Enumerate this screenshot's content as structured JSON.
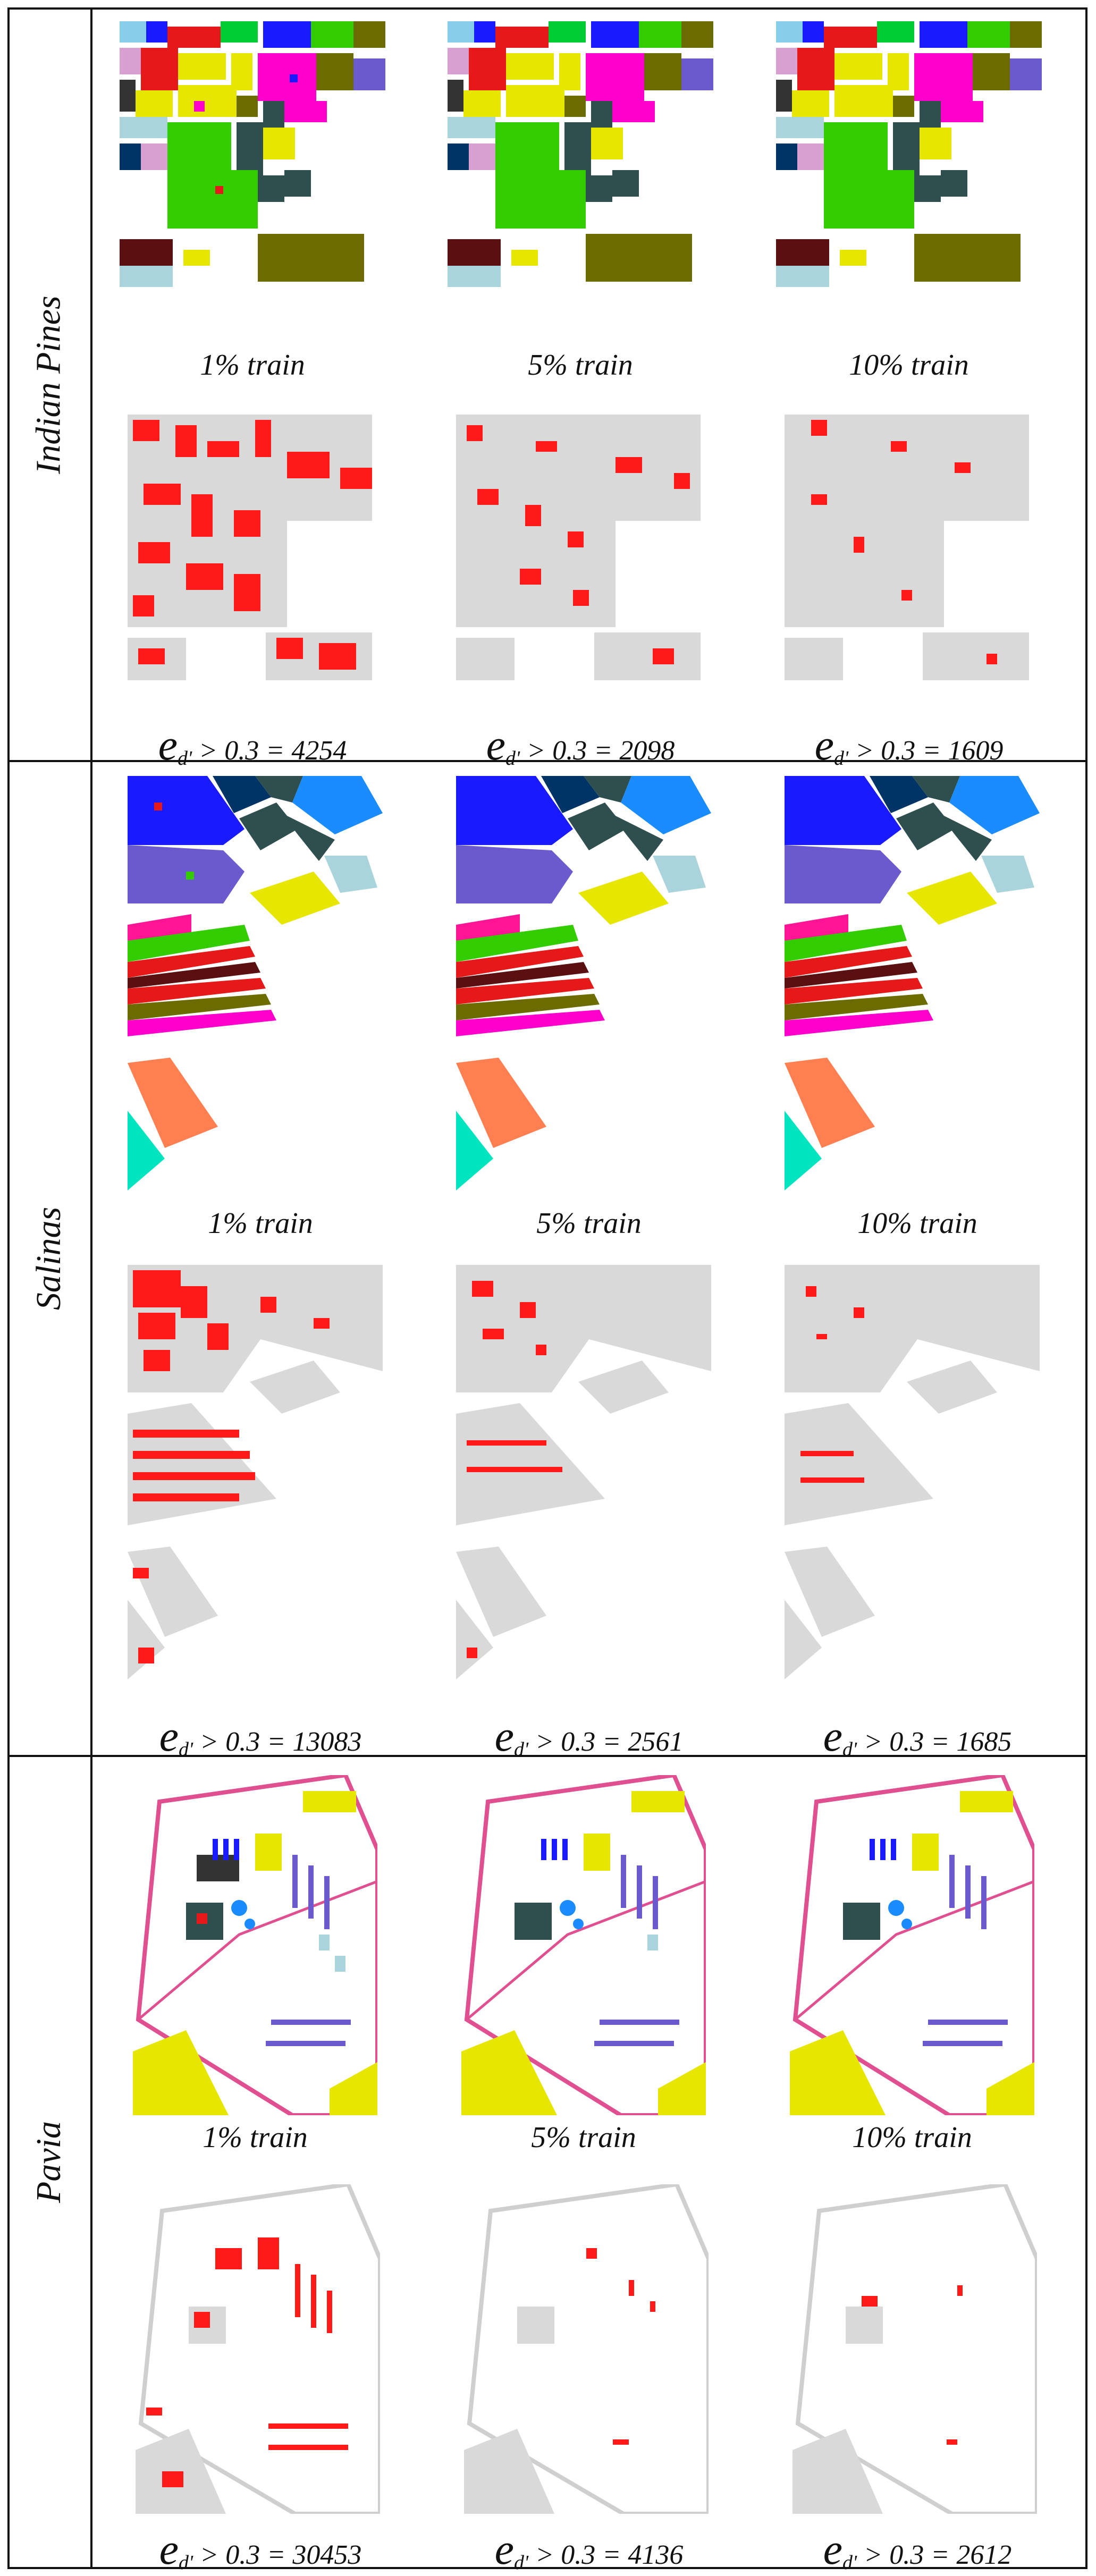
{
  "figure": {
    "sections": [
      {
        "name": "Indian Pines",
        "captions": [
          "1% train",
          "5% train",
          "10% train"
        ],
        "errors": [
          {
            "symbol": "e",
            "subscript": "d'",
            "condition": " > 0.3 = ",
            "count": "4254"
          },
          {
            "symbol": "e",
            "subscript": "d'",
            "condition": " > 0.3 = ",
            "count": "2098"
          },
          {
            "symbol": "e",
            "subscript": "d'",
            "condition": " > 0.3 = ",
            "count": "1609"
          }
        ]
      },
      {
        "name": "Salinas",
        "captions": [
          "1% train",
          "5% train",
          "10% train"
        ],
        "errors": [
          {
            "symbol": "e",
            "subscript": "d'",
            "condition": " > 0.3 = ",
            "count": "13083"
          },
          {
            "symbol": "e",
            "subscript": "d'",
            "condition": " > 0.3 = ",
            "count": "2561"
          },
          {
            "symbol": "e",
            "subscript": "d'",
            "condition": " > 0.3 = ",
            "count": "1685"
          }
        ]
      },
      {
        "name": "Pavia",
        "captions": [
          "1% train",
          "5% train",
          "10% train"
        ],
        "errors": [
          {
            "symbol": "e",
            "subscript": "d'",
            "condition": " > 0.3 = ",
            "count": "30453"
          },
          {
            "symbol": "e",
            "subscript": "d'",
            "condition": " > 0.3 = ",
            "count": "4136"
          },
          {
            "symbol": "e",
            "subscript": "d'",
            "condition": " > 0.3 = ",
            "count": "2612"
          }
        ]
      }
    ],
    "colors": {
      "border": "#111111",
      "error_red": "#ff1a1a",
      "background_gray": "#d9d9d9",
      "class_palette": [
        "#1a1aff",
        "#00ffff",
        "#ff1493",
        "#e51919",
        "#33cc00",
        "#00cc33",
        "#e6e600",
        "#ff00cc",
        "#8a8a8a",
        "#333333",
        "#6a5acd",
        "#003366",
        "#5a1010",
        "#6b6b00",
        "#a9d4dc",
        "#2f4f4f",
        "#ff7f50",
        "#00e5c0",
        "#9370db",
        "#87ceeb"
      ]
    }
  }
}
